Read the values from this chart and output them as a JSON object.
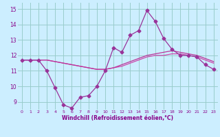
{
  "x": [
    0,
    1,
    2,
    3,
    4,
    5,
    6,
    7,
    8,
    9,
    10,
    11,
    12,
    13,
    14,
    15,
    16,
    17,
    18,
    19,
    20,
    21,
    22,
    23
  ],
  "line1": [
    11.7,
    11.7,
    11.7,
    11.0,
    9.9,
    8.8,
    8.6,
    9.3,
    9.4,
    10.0,
    11.0,
    12.5,
    12.2,
    13.3,
    13.6,
    14.9,
    14.2,
    13.1,
    12.4,
    12.0,
    12.0,
    11.9,
    11.4,
    11.1
  ],
  "line2": [
    11.7,
    11.7,
    11.7,
    11.7,
    11.6,
    11.5,
    11.4,
    11.3,
    11.2,
    11.1,
    11.1,
    11.2,
    11.3,
    11.5,
    11.7,
    11.9,
    12.0,
    12.0,
    12.1,
    12.1,
    12.0,
    11.9,
    11.7,
    11.5
  ],
  "line3": [
    11.7,
    11.7,
    11.7,
    11.7,
    11.6,
    11.5,
    11.4,
    11.3,
    11.2,
    11.1,
    11.1,
    11.2,
    11.4,
    11.6,
    11.8,
    12.0,
    12.1,
    12.2,
    12.3,
    12.2,
    12.1,
    12.0,
    11.8,
    11.6
  ],
  "line_color1": "#993399",
  "line_color2": "#cc44aa",
  "line_color3": "#bb3399",
  "bg_color": "#cceeff",
  "grid_color": "#99cccc",
  "xlabel": "Windchill (Refroidissement éolien,°C)",
  "ylim": [
    8.5,
    15.4
  ],
  "yticks": [
    9,
    10,
    11,
    12,
    13,
    14,
    15
  ],
  "xticks": [
    0,
    1,
    2,
    3,
    4,
    5,
    6,
    7,
    8,
    9,
    10,
    11,
    12,
    13,
    14,
    15,
    16,
    17,
    18,
    19,
    20,
    21,
    22,
    23
  ],
  "marker": "D",
  "markersize": 2.5,
  "tick_color": "#880088",
  "label_color": "#880088"
}
